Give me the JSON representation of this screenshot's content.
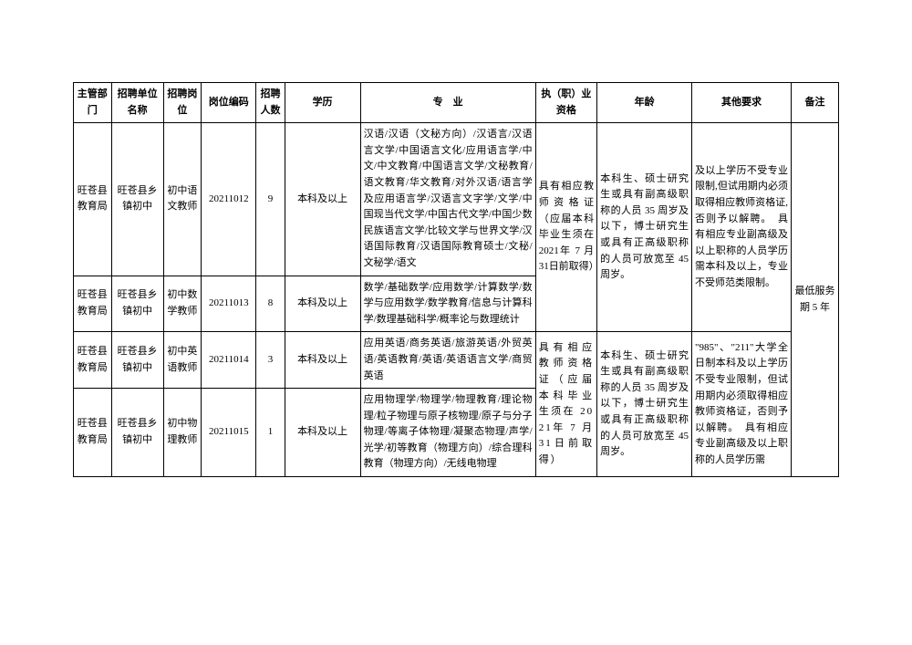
{
  "headers": {
    "dept": "主管部门",
    "unit": "招聘单位名称",
    "post": "招聘岗位",
    "code": "岗位编码",
    "num": "招聘人数",
    "edu": "学历",
    "major": "专　业",
    "qual": "执（职）业资格",
    "age": "年龄",
    "other": "其他要求",
    "note": "备注"
  },
  "rows": [
    {
      "dept": "旺苍县教育局",
      "unit": "旺苍县乡镇初中",
      "post": "初中语文教师",
      "code": "20211012",
      "num": "9",
      "edu": "本科及以上",
      "major": "汉语/汉语（文秘方向）/汉语言/汉语言文学/中国语言文化/应用语言学/中文/中文教育/中国语言文学/文秘教育/语文教育/华文教育/对外汉语/语言学及应用语言学/汉语言文字学/文学/中国现当代文学/中国古代文学/中国少数民族语言文学/比较文学与世界文学/汉语国际教育/汉语国际教育硕士/文秘/文秘学/语文"
    },
    {
      "dept": "旺苍县教育局",
      "unit": "旺苍县乡镇初中",
      "post": "初中数学教师",
      "code": "20211013",
      "num": "8",
      "edu": "本科及以上",
      "major": "数学/基础数学/应用数学/计算数学/数学与应用数学/数学教育/信息与计算科学/数理基础科学/概率论与数理统计"
    },
    {
      "dept": "旺苍县教育局",
      "unit": "旺苍县乡镇初中",
      "post": "初中英语教师",
      "code": "20211014",
      "num": "3",
      "edu": "本科及以上",
      "major": "应用英语/商务英语/旅游英语/外贸英语/英语教育/英语/英语语言文学/商贸英语"
    },
    {
      "dept": "旺苍县教育局",
      "unit": "旺苍县乡镇初中",
      "post": "初中物理教师",
      "code": "20211015",
      "num": "1",
      "edu": "本科及以上",
      "major": "应用物理学/物理学/物理教育/理论物理/粒子物理与原子核物理/原子与分子物理/等离子体物理/凝聚态物理/声学/光学/初等教育（物理方向）/综合理科教育（物理方向）/无线电物理"
    }
  ],
  "merged": {
    "qual1": "具有相应教师资格证（应届本科毕业生须在 2021年 7 月 31日前取得）",
    "qual2": "具有相应教师资格证（应届本科毕业生须在 2021年 7 月 31日前取得）",
    "age1": "本科生、硕士研究生或具有副高级职称的人员 35 周岁及以下，博士研究生或具有正高级职称的人员可放宽至 45 周岁。",
    "age2": "本科生、硕士研究生或具有副高级职称的人员 35 周岁及以下，博士研究生或具有正高级职称的人员可放宽至 45 周岁。",
    "other1": "及以上学历不受专业限制,但试用期内必须取得相应教师资格证,否则予以解聘。　具有相应专业副高级及以上职称的人员学历需本科及以上，专业不受师范类限制。",
    "other2": "\"985\"、\"211\"大学全日制本科及以上学历不受专业限制，但试用期内必须取得相应教师资格证，否则予以解聘。　具有相应专业副高级及以上职称的人员学历需",
    "note": "最低服务期 5 年"
  }
}
